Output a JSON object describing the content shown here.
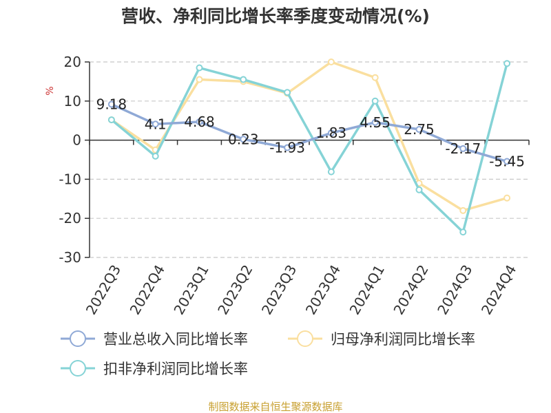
{
  "chart_data": {
    "type": "line",
    "title": "营收、净利同比增长率季度变动情况(%)",
    "ylabel": "%",
    "xlabel": "",
    "categories": [
      "2022Q3",
      "2022Q4",
      "2023Q1",
      "2023Q2",
      "2023Q3",
      "2023Q4",
      "2024Q1",
      "2024Q2",
      "2024Q3",
      "2024Q4"
    ],
    "ylim": [
      -30,
      20
    ],
    "yticks": [
      20,
      10,
      0,
      -10,
      -20,
      -30
    ],
    "grid": true,
    "legend_position": "bottom",
    "series": [
      {
        "name": "营业总收入同比增长率",
        "color": "#8fa9d6",
        "values": [
          9.18,
          4.1,
          4.68,
          0.23,
          -1.93,
          1.83,
          4.55,
          2.75,
          -2.17,
          -5.45
        ],
        "labels": [
          "9.18",
          "4.1",
          "4.68",
          "0.23",
          "-1.93",
          "1.83",
          "4.55",
          "2.75",
          "-2.17",
          "-5.45"
        ],
        "show_labels": true
      },
      {
        "name": "归母净利润同比增长率",
        "color": "#fadf9f",
        "values": [
          5.2,
          -2.5,
          15.5,
          15.0,
          12.0,
          20.0,
          16.0,
          -11.0,
          -18.0,
          -14.8
        ],
        "show_labels": false
      },
      {
        "name": "扣非净利润同比增长率",
        "color": "#85d3d6",
        "values": [
          5.2,
          -4.1,
          18.5,
          15.5,
          12.2,
          -8.1,
          10.0,
          -12.7,
          -23.5,
          19.6
        ],
        "show_labels": false
      }
    ]
  },
  "footer": {
    "source": "制图数据来自恒生聚源数据库",
    "source_color": "#c8a030"
  }
}
